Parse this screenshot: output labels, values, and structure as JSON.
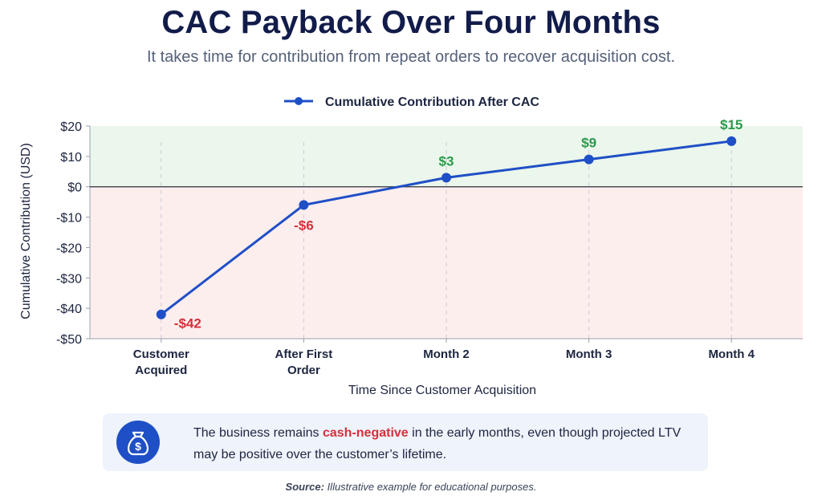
{
  "title": "CAC Payback Over Four Months",
  "subtitle": "It takes time for contribution from repeat orders to recover acquisition cost.",
  "callout": {
    "icon": "money-bag-icon",
    "text_before": "The business remains ",
    "highlight": "cash-negative",
    "text_after": " in the early months, even though projected LTV may be positive over the customer’s lifetime."
  },
  "source": {
    "label": "Source:",
    "text": " Illustrative example for educational purposes."
  },
  "colors": {
    "line": "#1f4fc6",
    "positive": "#2a9a4a",
    "negative": "#d6303a",
    "positive_zone": "#ebf6ec",
    "negative_zone": "#fdeeee"
  },
  "chart_data": {
    "type": "line",
    "title": "CAC Payback Over Four Months",
    "xlabel": "Time Since Customer Acquisition",
    "ylabel": "Cumulative Contribution (USD)",
    "ylim": [
      -50,
      20
    ],
    "yticks": [
      20,
      10,
      0,
      -10,
      -20,
      -30,
      -40,
      -50
    ],
    "ytick_labels": [
      "$20",
      "$10",
      "$0",
      "-$10",
      "-$20",
      "-$30",
      "-$40",
      "-$50"
    ],
    "categories": [
      [
        "Customer",
        "Acquired"
      ],
      [
        "After First",
        "Order"
      ],
      [
        "Month 2"
      ],
      [
        "Month 3"
      ],
      [
        "Month 4"
      ]
    ],
    "series": [
      {
        "name": "Cumulative Contribution After CAC",
        "values": [
          -42,
          -6,
          3,
          9,
          15
        ],
        "labels": [
          "-$42",
          "-$6",
          "$3",
          "$9",
          "$15"
        ]
      }
    ],
    "legend": "top-center",
    "grid": "vertical dashed"
  }
}
